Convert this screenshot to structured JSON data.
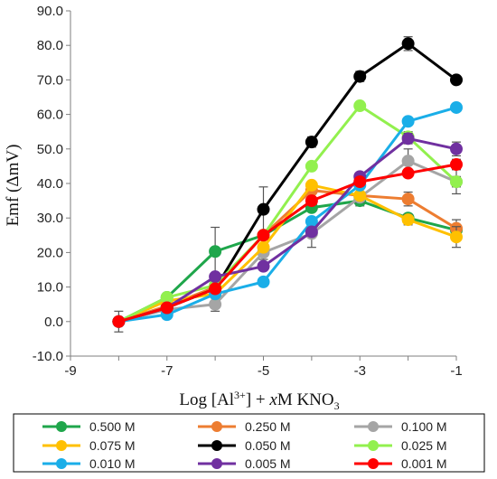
{
  "chart_data": {
    "type": "line",
    "xlabel": "Log [Al3+] + xM KNO3",
    "xlabel_parts": {
      "prefix": "Log [Al",
      "sup": "3+",
      "mid1": "] + ",
      "italic": "x",
      "mid2": "M KNO",
      "sub": "3"
    },
    "ylabel": "Emf (ΔmV)",
    "xlim": [
      -9,
      -1
    ],
    "ylim": [
      -10,
      90
    ],
    "xticks": [
      "-9",
      "-7",
      "-5",
      "-3",
      "-1"
    ],
    "yticks": [
      "-10.0",
      "0.0",
      "10.0",
      "20.0",
      "30.0",
      "40.0",
      "50.0",
      "60.0",
      "70.0",
      "80.0",
      "90.0"
    ],
    "grid": false,
    "legend_position": "bottom",
    "x": [
      -8,
      -7,
      -6,
      -5,
      -4,
      -3,
      -2,
      -1
    ],
    "series": [
      {
        "name": "0.500 M",
        "color": "#1fa64b",
        "values": [
          0.0,
          7.0,
          20.3,
          25.0,
          33.0,
          35.0,
          30.0,
          26.5
        ],
        "errors": [
          0.5,
          0.5,
          7.0,
          1.0,
          1.0,
          1.5,
          1.0,
          1.0
        ]
      },
      {
        "name": "0.250 M",
        "color": "#ed7d31",
        "values": [
          0.0,
          4.5,
          10.0,
          25.0,
          38.0,
          36.5,
          35.5,
          27.0
        ],
        "errors": [
          0.5,
          0.5,
          1.0,
          1.0,
          1.0,
          1.0,
          2.0,
          2.5
        ]
      },
      {
        "name": "0.100 M",
        "color": "#a5a5a5",
        "values": [
          0.0,
          3.5,
          5.0,
          20.0,
          25.5,
          36.0,
          46.5,
          40.5
        ],
        "errors": [
          3.0,
          1.0,
          2.0,
          2.0,
          4.0,
          1.5,
          3.5,
          3.5
        ]
      },
      {
        "name": "0.075 M",
        "color": "#ffc000",
        "values": [
          0.0,
          6.0,
          8.0,
          21.5,
          39.5,
          36.5,
          29.5,
          24.5
        ],
        "errors": [
          0.5,
          0.5,
          1.0,
          1.0,
          1.0,
          1.0,
          1.5,
          3.0
        ]
      },
      {
        "name": "0.050 M",
        "color": "#000000",
        "values": [
          0.0,
          4.0,
          9.5,
          32.5,
          52.0,
          71.0,
          80.5,
          70.0
        ],
        "errors": [
          0.5,
          0.5,
          1.0,
          6.5,
          1.5,
          1.5,
          2.0,
          1.0
        ]
      },
      {
        "name": "0.025 M",
        "color": "#92f04e",
        "values": [
          0.0,
          7.0,
          10.5,
          25.0,
          45.0,
          62.5,
          53.5,
          40.5
        ],
        "errors": [
          0.5,
          0.5,
          1.0,
          1.0,
          1.0,
          1.0,
          1.5,
          1.5
        ]
      },
      {
        "name": "0.010 M",
        "color": "#1aaee8",
        "values": [
          0.0,
          2.0,
          8.0,
          11.5,
          29.0,
          39.5,
          58.0,
          62.0
        ],
        "errors": [
          0.5,
          0.5,
          1.0,
          1.0,
          1.0,
          1.0,
          1.0,
          1.0
        ]
      },
      {
        "name": "0.005 M",
        "color": "#7030a0",
        "values": [
          0.0,
          4.0,
          13.0,
          16.0,
          26.0,
          42.0,
          53.0,
          50.0
        ],
        "errors": [
          0.5,
          0.5,
          1.0,
          1.0,
          1.0,
          1.0,
          1.5,
          2.0
        ]
      },
      {
        "name": "0.001 M",
        "color": "#ff0000",
        "values": [
          0.0,
          4.0,
          9.5,
          25.0,
          35.0,
          40.5,
          43.0,
          45.5
        ],
        "errors": [
          0.5,
          0.5,
          1.0,
          1.0,
          1.0,
          1.0,
          1.0,
          1.5
        ]
      }
    ]
  }
}
